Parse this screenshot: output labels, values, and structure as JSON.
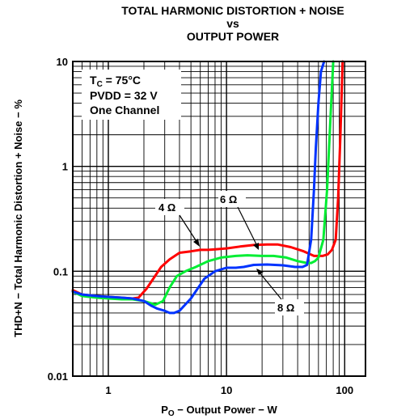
{
  "chart_data": {
    "type": "line",
    "title_lines": [
      "TOTAL HARMONIC DISTORTION + NOISE",
      "vs",
      "OUTPUT POWER"
    ],
    "xlabel": "P",
    "xlabel_sub": "O",
    "xlabel_rest": " − Output Power − W",
    "ylabel": "THD+N − Total Harmonic Distortion + Noise − %",
    "x_scale": "log",
    "y_scale": "log",
    "xlim": [
      0.5,
      150
    ],
    "ylim": [
      0.01,
      10
    ],
    "x_ticks": [
      {
        "value": 1,
        "label": "1"
      },
      {
        "value": 10,
        "label": "10"
      },
      {
        "value": 100,
        "label": "100"
      }
    ],
    "y_ticks": [
      {
        "value": 0.01,
        "label": "0.01"
      },
      {
        "value": 0.1,
        "label": "0.1"
      },
      {
        "value": 1,
        "label": "1"
      },
      {
        "value": 10,
        "label": "10"
      }
    ],
    "grid": true,
    "conditions": {
      "tc_main": "T",
      "tc_sub": "C",
      "tc_rest": " = 75°C",
      "pvdd": "PVDD = 32 V",
      "channel": "One Channel"
    },
    "series": [
      {
        "name": "4 Ω",
        "color": "#ff0000",
        "x": [
          0.5,
          0.6,
          0.8,
          1.0,
          1.3,
          1.6,
          1.8,
          2.1,
          2.4,
          2.8,
          3.3,
          4.0,
          5.0,
          6.0,
          7.0,
          8.0,
          10,
          13,
          17,
          22,
          27,
          35,
          45,
          55,
          65,
          72,
          78,
          84,
          88,
          92,
          96
        ],
        "y": [
          0.066,
          0.06,
          0.058,
          0.057,
          0.056,
          0.055,
          0.056,
          0.068,
          0.085,
          0.11,
          0.13,
          0.15,
          0.155,
          0.16,
          0.16,
          0.162,
          0.165,
          0.172,
          0.178,
          0.18,
          0.18,
          0.17,
          0.155,
          0.14,
          0.14,
          0.145,
          0.16,
          0.2,
          0.5,
          2.0,
          10
        ]
      },
      {
        "name": "6 Ω",
        "color": "#00ee33",
        "x": [
          0.5,
          0.6,
          0.8,
          1.0,
          1.3,
          1.6,
          2.0,
          2.5,
          2.9,
          3.3,
          3.8,
          4.5,
          5.5,
          7.0,
          9.0,
          12,
          15,
          20,
          25,
          32,
          40,
          48,
          52,
          56,
          60,
          66,
          71,
          76,
          80
        ],
        "y": [
          0.064,
          0.058,
          0.056,
          0.055,
          0.054,
          0.054,
          0.052,
          0.048,
          0.052,
          0.07,
          0.09,
          0.1,
          0.11,
          0.125,
          0.135,
          0.14,
          0.142,
          0.14,
          0.14,
          0.135,
          0.125,
          0.12,
          0.12,
          0.125,
          0.135,
          0.2,
          0.6,
          3.0,
          10
        ]
      },
      {
        "name": "8 Ω",
        "color": "#0033ff",
        "x": [
          0.5,
          0.6,
          0.8,
          1.0,
          1.3,
          1.6,
          2.0,
          2.3,
          2.6,
          3.0,
          3.3,
          3.6,
          4.0,
          5.0,
          6.5,
          8.0,
          10,
          12,
          14,
          17,
          22,
          30,
          38,
          44,
          48,
          52,
          55,
          57,
          60,
          63,
          67
        ],
        "y": [
          0.064,
          0.06,
          0.058,
          0.057,
          0.056,
          0.055,
          0.052,
          0.047,
          0.044,
          0.042,
          0.04,
          0.04,
          0.042,
          0.055,
          0.085,
          0.1,
          0.108,
          0.108,
          0.11,
          0.115,
          0.116,
          0.114,
          0.11,
          0.11,
          0.115,
          0.2,
          0.6,
          1.5,
          4.0,
          8.0,
          10
        ]
      }
    ]
  }
}
